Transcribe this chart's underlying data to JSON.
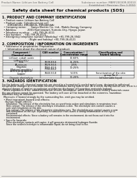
{
  "bg_color": "#f0ede8",
  "title": "Safety data sheet for chemical products (SDS)",
  "header_left": "Product Name: Lithium Ion Battery Cell",
  "header_right_line1": "Substance number: MBRF20030R-00010",
  "header_right_line2": "Established / Revision: Dec.1.2010",
  "section1_title": "1. PRODUCT AND COMPANY IDENTIFICATION",
  "section1_lines": [
    "  • Product name: Lithium Ion Battery Cell",
    "  • Product code: Cylindrical-type cell",
    "       (IHR18650U, IHR18650L, IHR18650A)",
    "  • Company name:      Sanyo Electric Co., Ltd., Mobile Energy Company",
    "  • Address:              2001 Kamionazari, Sumoto-City, Hyogo, Japan",
    "  • Telephone number:    +81-799-26-4111",
    "  • Fax number:    +81-799-26-4121",
    "  • Emergency telephone number (Weekday) +81-799-26-3942",
    "                                   (Night and holiday) +81-799-26-4121"
  ],
  "section2_title": "2. COMPOSITION / INFORMATION ON INGREDIENTS",
  "section2_intro": "  • Substance or preparation: Preparation",
  "section2_sub": "    • Information about the chemical nature of product:",
  "table_col_headers1": [
    "Component /",
    "CAS number",
    "Concentration /",
    "Classification and"
  ],
  "table_col_headers2": [
    "Chemical name",
    "",
    "Concentration range",
    "hazard labeling"
  ],
  "table_rows": [
    [
      "Lithium cobalt oxide",
      "-",
      "30-60%",
      "-"
    ],
    [
      "(LiMnCo)(O2)",
      "",
      "",
      ""
    ],
    [
      "Iron",
      "7439-89-6",
      "15-25%",
      "-"
    ],
    [
      "Aluminum",
      "7429-90-5",
      "2-5%",
      "-"
    ],
    [
      "Graphite",
      "7782-42-5",
      "10-25%",
      "-"
    ],
    [
      "(Natural graphite /",
      "7782-44-2",
      "",
      ""
    ],
    [
      "Artificial graphite)",
      "",
      "",
      ""
    ],
    [
      "Copper",
      "7440-50-8",
      "5-15%",
      "Sensitization of the skin"
    ],
    [
      "",
      "",
      "",
      "group No.2"
    ],
    [
      "Organic electrolyte",
      "-",
      "10-20%",
      "Inflammable liquid"
    ]
  ],
  "section3_title": "3. HAZARDS IDENTIFICATION",
  "section3_lines": [
    "For the battery cell, chemical materials are stored in a hermetically sealed metal case, designed to withstand",
    "temperature changes and electrode-corrosive conditions during normal use. As a result, during normal use, there is no",
    "physical danger of ignition or explosion and thermo-discharger of hazardous materials leakage.",
    "  When exposed to a fire, added mechanical shocks, decompose, which electro-active battery materials cause",
    "the gas release cannot be operated. The battery cell case will be broached at the extremes, hazardous",
    "materials may be released.",
    "  Moreover, if heated strongly by the surrounding fire, emit gas may be emitted."
  ],
  "section3_bullet1": "  • Most important hazard and effects:",
  "section3_human_title": "    Human health effects:",
  "section3_human_lines": [
    "      Inhalation: The release of the electrolyte has an anesthesia action and stimulates in respiratory tract.",
    "      Skin contact: The release of the electrolyte stimulates a skin. The electrolyte skin contact causes a",
    "      sore and stimulation on the skin.",
    "      Eye contact: The release of the electrolyte stimulates eyes. The electrolyte eye contact causes a sore",
    "      and stimulation on the eye. Especially, a substance that causes a strong inflammation of the eye is",
    "      contained.",
    "      Environmental effects: Since a battery cell remains in the environment, do not throw out it into the",
    "      environment."
  ],
  "section3_bullet2": "  • Specific hazards:",
  "section3_specific_lines": [
    "      If the electrolyte contacts with water, it will generate detrimental hydrogen fluoride.",
    "      Since the sealed electrolyte is inflammable liquid, do not bring close to fire."
  ]
}
